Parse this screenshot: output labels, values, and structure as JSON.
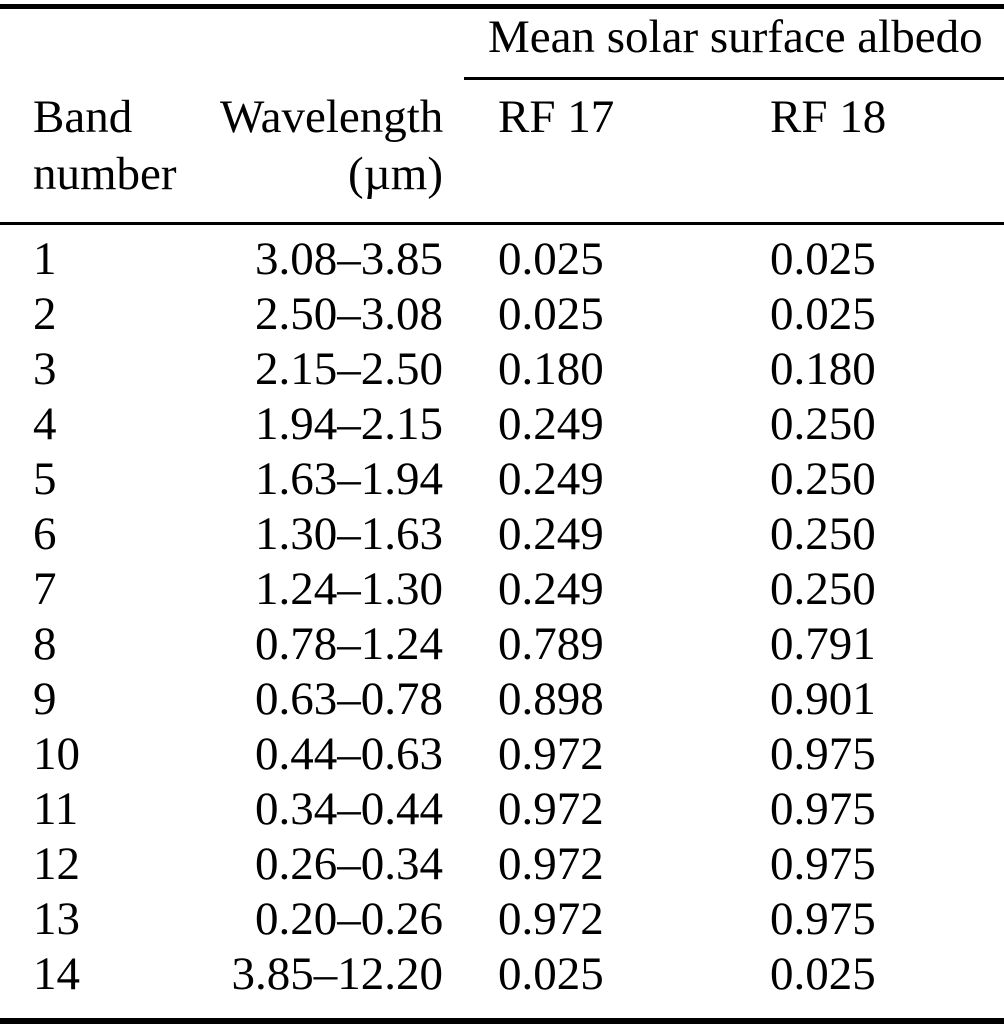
{
  "colors": {
    "text": "#000000",
    "background": "#ffffff",
    "rule": "#000000"
  },
  "table": {
    "span_header": "Mean solar surface albedo",
    "columns": {
      "band": {
        "line1": "Band",
        "line2": "number"
      },
      "wavelength": {
        "line1": "Wavelength",
        "line2": "(µm)"
      },
      "rf17": "RF 17",
      "rf18": "RF 18"
    },
    "rows": [
      {
        "band": "1",
        "wavelength": "3.08–3.85",
        "rf17": "0.025",
        "rf18": "0.025"
      },
      {
        "band": "2",
        "wavelength": "2.50–3.08",
        "rf17": "0.025",
        "rf18": "0.025"
      },
      {
        "band": "3",
        "wavelength": "2.15–2.50",
        "rf17": "0.180",
        "rf18": "0.180"
      },
      {
        "band": "4",
        "wavelength": "1.94–2.15",
        "rf17": "0.249",
        "rf18": "0.250"
      },
      {
        "band": "5",
        "wavelength": "1.63–1.94",
        "rf17": "0.249",
        "rf18": "0.250"
      },
      {
        "band": "6",
        "wavelength": "1.30–1.63",
        "rf17": "0.249",
        "rf18": "0.250"
      },
      {
        "band": "7",
        "wavelength": "1.24–1.30",
        "rf17": "0.249",
        "rf18": "0.250"
      },
      {
        "band": "8",
        "wavelength": "0.78–1.24",
        "rf17": "0.789",
        "rf18": "0.791"
      },
      {
        "band": "9",
        "wavelength": "0.63–0.78",
        "rf17": "0.898",
        "rf18": "0.901"
      },
      {
        "band": "10",
        "wavelength": "0.44–0.63",
        "rf17": "0.972",
        "rf18": "0.975"
      },
      {
        "band": "11",
        "wavelength": "0.34–0.44",
        "rf17": "0.972",
        "rf18": "0.975"
      },
      {
        "band": "12",
        "wavelength": "0.26–0.34",
        "rf17": "0.972",
        "rf18": "0.975"
      },
      {
        "band": "13",
        "wavelength": "0.20–0.26",
        "rf17": "0.972",
        "rf18": "0.975"
      },
      {
        "band": "14",
        "wavelength": "3.85–12.20",
        "rf17": "0.025",
        "rf18": "0.025"
      }
    ]
  }
}
